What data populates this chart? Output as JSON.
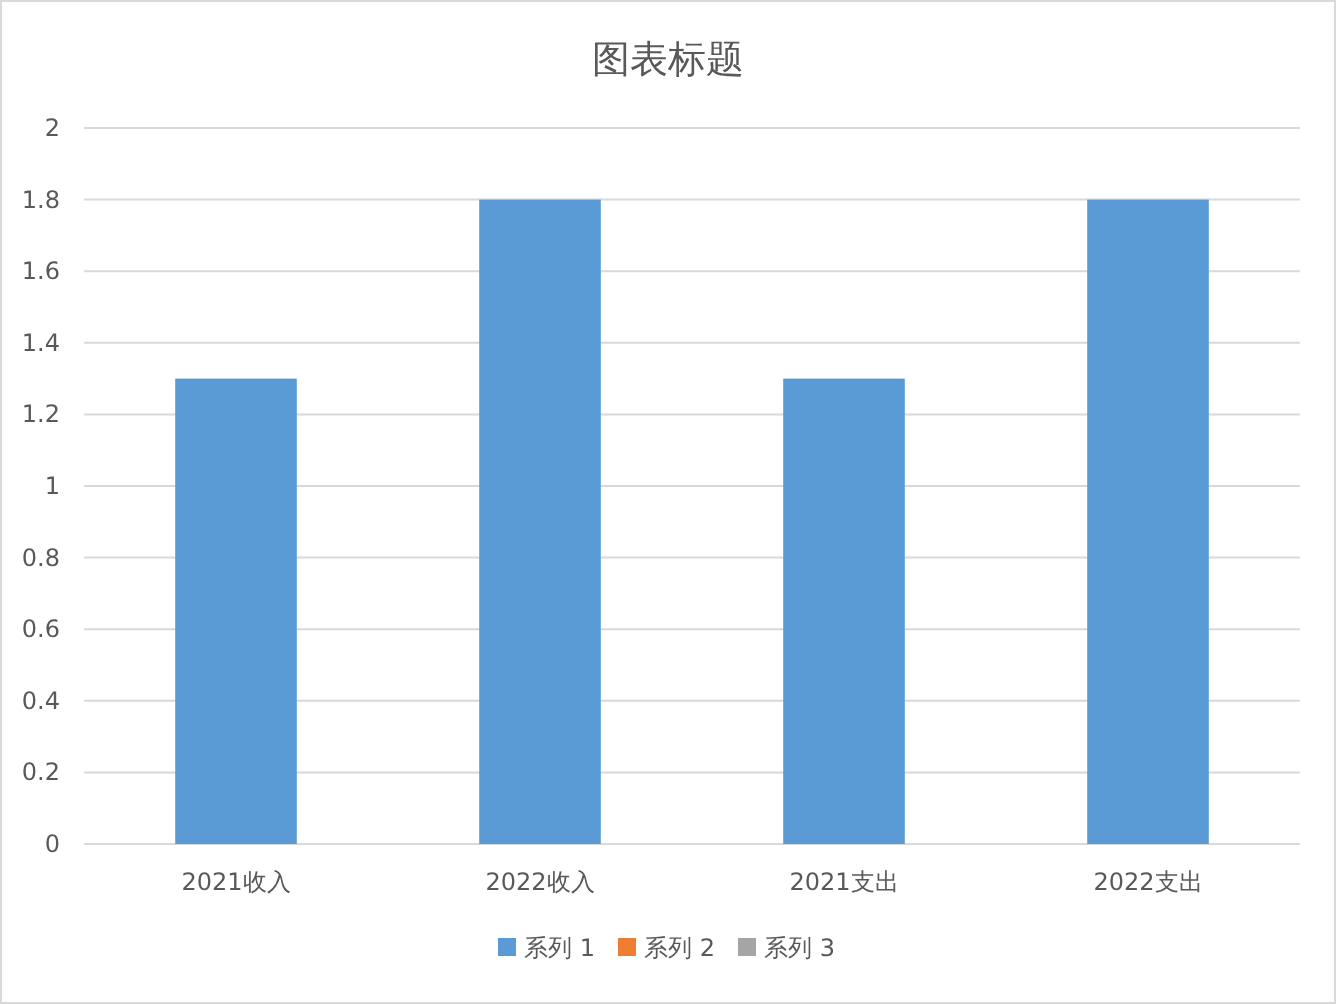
{
  "chart_data": {
    "type": "bar",
    "title": "图表标题",
    "categories": [
      "2021收入",
      "2022收入",
      "2021支出",
      "2022支出"
    ],
    "series": [
      {
        "name": "系列 1",
        "color": "#5b9bd5",
        "values": [
          1.3,
          1.8,
          1.3,
          1.8
        ]
      },
      {
        "name": "系列 2",
        "color": "#ed7d31",
        "values": [
          null,
          null,
          null,
          null
        ]
      },
      {
        "name": "系列 3",
        "color": "#a5a5a5",
        "values": [
          null,
          null,
          null,
          null
        ]
      }
    ],
    "ylim": [
      0,
      2
    ],
    "yticks": [
      0,
      0.2,
      0.4,
      0.6,
      0.8,
      1,
      1.2,
      1.4,
      1.6,
      1.8,
      2
    ],
    "grid": "y",
    "legend": "bottom"
  }
}
